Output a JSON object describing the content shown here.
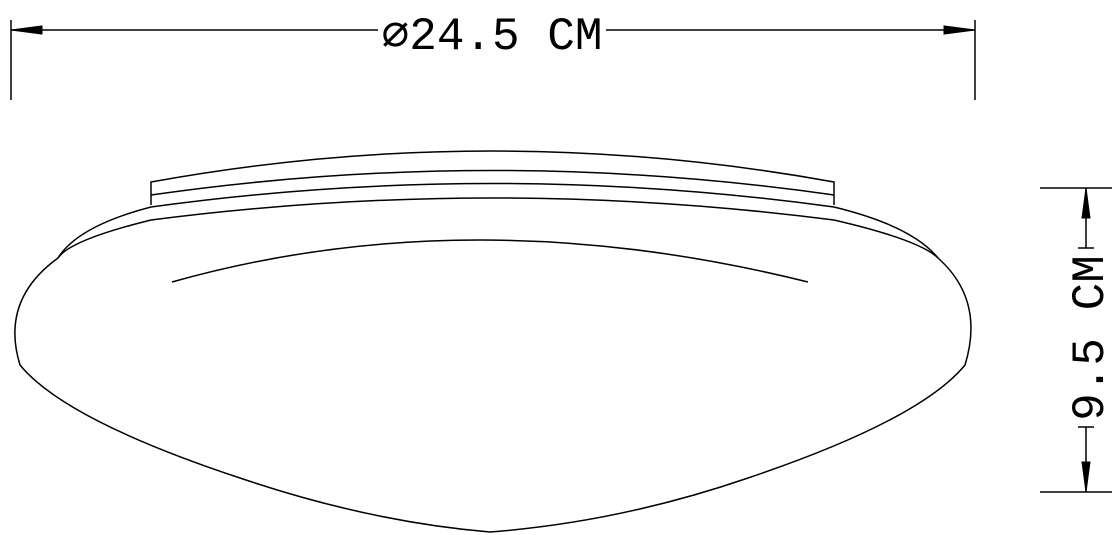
{
  "width_dimension": {
    "label": "⌀24.5 CM"
  },
  "height_dimension": {
    "label": "9.5 CM"
  },
  "colors": {
    "line": "#000000",
    "background": "#ffffff"
  }
}
